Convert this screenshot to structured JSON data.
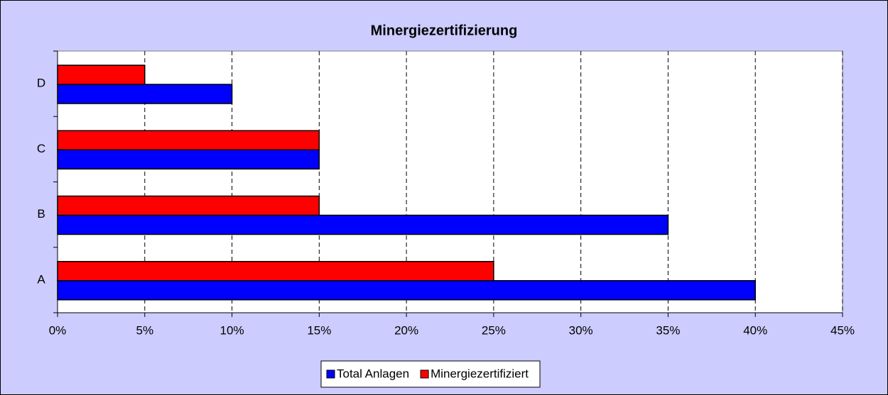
{
  "chart_data": {
    "type": "bar",
    "orientation": "horizontal",
    "title": "Minergiezertifizierung",
    "categories": [
      "A",
      "B",
      "C",
      "D"
    ],
    "series": [
      {
        "name": "Total Anlagen",
        "color": "#0000ff",
        "values": [
          40,
          35,
          15,
          10
        ]
      },
      {
        "name": "Minergiezertifiziert",
        "color": "#ff0000",
        "values": [
          25,
          15,
          15,
          5
        ]
      }
    ],
    "xlim": [
      0,
      45
    ],
    "xticks": [
      {
        "value": 0,
        "label": "0%"
      },
      {
        "value": 5,
        "label": "5%"
      },
      {
        "value": 10,
        "label": "10%"
      },
      {
        "value": 15,
        "label": "15%"
      },
      {
        "value": 20,
        "label": "20%"
      },
      {
        "value": 25,
        "label": "25%"
      },
      {
        "value": 30,
        "label": "30%"
      },
      {
        "value": 35,
        "label": "35%"
      },
      {
        "value": 40,
        "label": "40%"
      },
      {
        "value": 45,
        "label": "45%"
      }
    ],
    "grid": true,
    "legend": "bottom"
  }
}
